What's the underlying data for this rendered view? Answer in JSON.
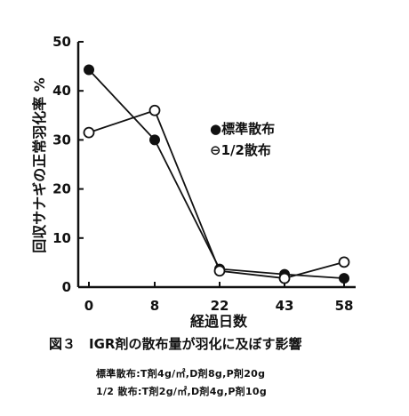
{
  "chart_data": {
    "type": "line",
    "x": [
      0,
      8,
      22,
      43,
      58
    ],
    "xlabel": "経過日数",
    "ylabel": "回収サナギの正常羽化率 %",
    "ylim": [
      0,
      50
    ],
    "yticks": [
      0,
      10,
      20,
      30,
      40,
      50
    ],
    "xticks": [
      "0",
      "8",
      "22",
      "43",
      "58"
    ],
    "legend_position": "right-middle",
    "series": [
      {
        "name": "●標準散布",
        "marker": "filled-circle",
        "values": [
          44.3,
          30.0,
          3.7,
          2.6,
          1.8
        ]
      },
      {
        "name": "⊖1/2散布",
        "marker": "open-circle",
        "values": [
          31.5,
          36.0,
          3.3,
          1.8,
          5.1
        ]
      }
    ]
  },
  "caption": {
    "figure": "図３　IGR剤の散布量が羽化に及ぼす影響",
    "note1": "標準散布:T剤4g/㎡,D剤8g,P剤20g",
    "note2": "1/2 散布:T剤2g/㎡,D剤4g,P剤10g"
  }
}
